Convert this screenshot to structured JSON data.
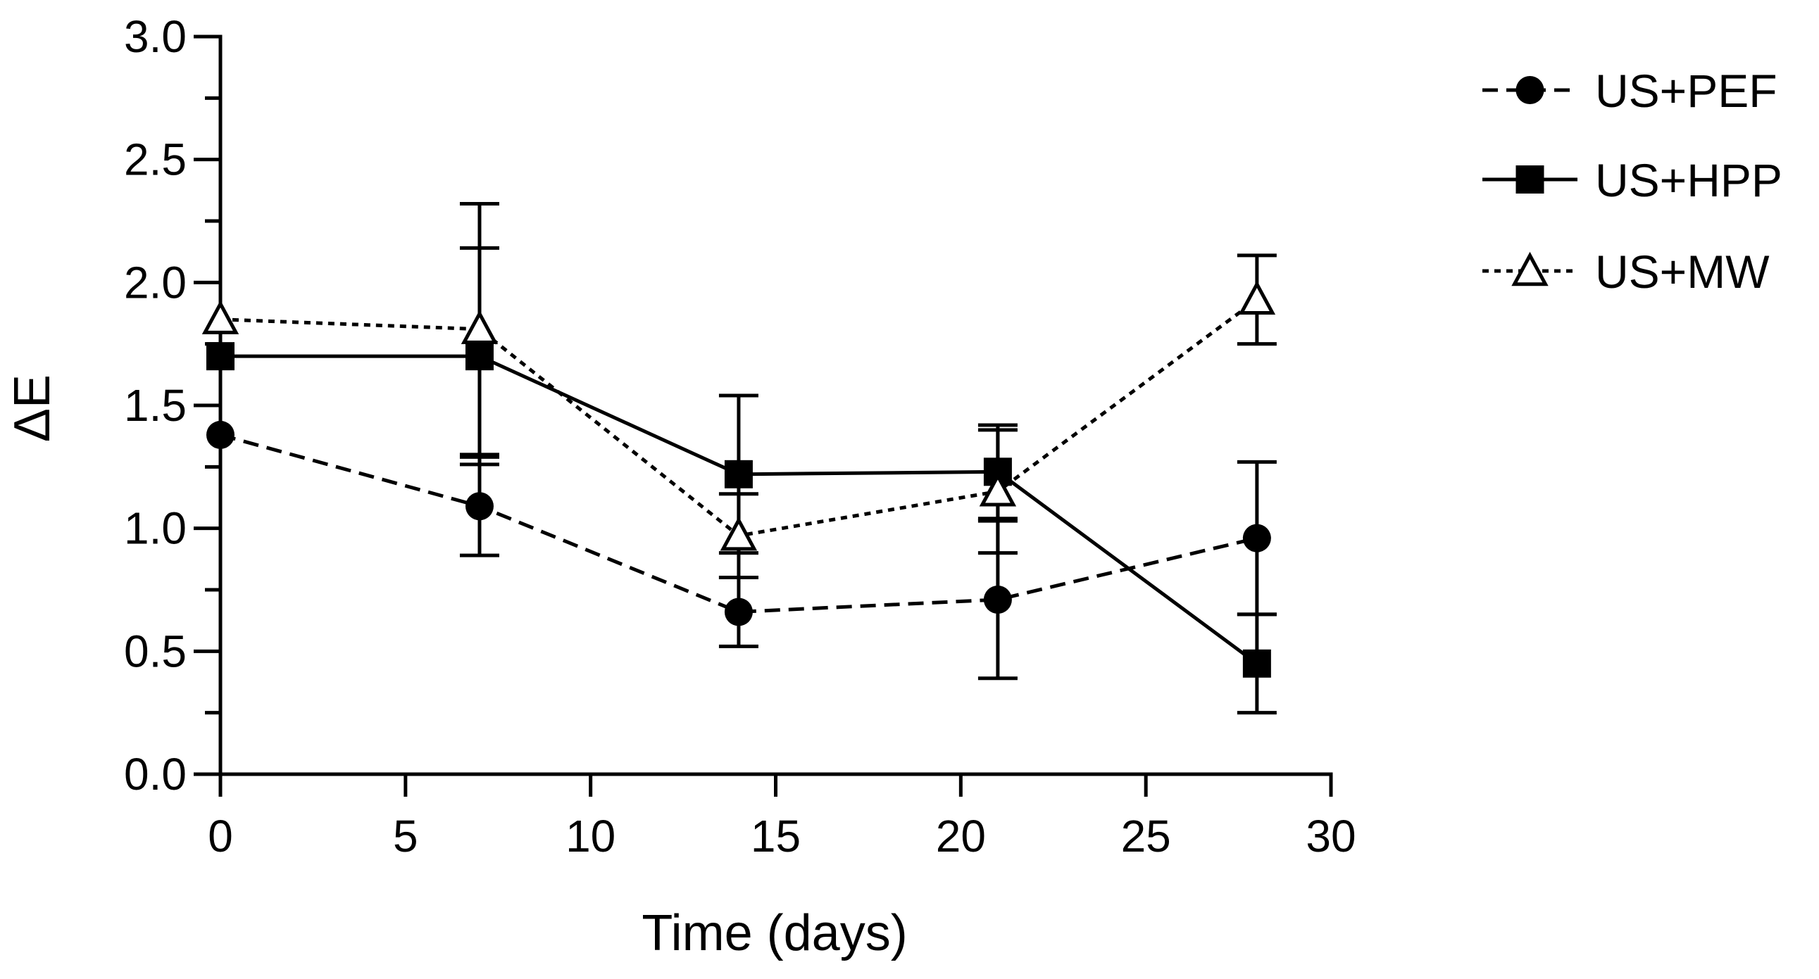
{
  "chart_data": {
    "type": "line",
    "title": "",
    "xlabel": "Time (days)",
    "ylabel": "ΔE",
    "xlim": [
      0,
      30
    ],
    "ylim": [
      0,
      3
    ],
    "xticks": [
      0,
      5,
      10,
      15,
      20,
      25,
      30
    ],
    "xtick_labels": [
      "0",
      "5",
      "10",
      "15",
      "20",
      "25",
      "30"
    ],
    "yticks": [
      0,
      0.5,
      1,
      1.5,
      2,
      2.5,
      3
    ],
    "ytick_labels": [
      "0.0",
      "0.5",
      "1.0",
      "1.5",
      "2.0",
      "2.5",
      "3.0"
    ],
    "grid": false,
    "legend_position": "right",
    "series": [
      {
        "name": "US+PEF",
        "marker": "filled-circle",
        "line_style": "dashed",
        "x": [
          0,
          7,
          14,
          21,
          28
        ],
        "values": [
          1.38,
          1.09,
          0.66,
          0.71,
          0.96
        ],
        "error_lower": [
          null,
          0.2,
          0.14,
          0.32,
          0.31
        ],
        "error_upper": [
          null,
          0.2,
          0.14,
          0.32,
          0.31
        ]
      },
      {
        "name": "US+HPP",
        "marker": "filled-square",
        "line_style": "solid",
        "x": [
          0,
          7,
          14,
          21,
          28
        ],
        "values": [
          1.7,
          1.7,
          1.22,
          1.23,
          0.45
        ],
        "error_lower": [
          null,
          0.44,
          0.32,
          0.19,
          0.2
        ],
        "error_upper": [
          null,
          0.44,
          0.32,
          0.19,
          0.2
        ]
      },
      {
        "name": "US+MW",
        "marker": "open-triangle",
        "line_style": "dotted",
        "x": [
          0,
          7,
          14,
          21,
          28
        ],
        "values": [
          1.85,
          1.81,
          0.97,
          1.15,
          1.93
        ],
        "error_lower": [
          null,
          0.51,
          0.17,
          0.25,
          0.18
        ],
        "error_upper": [
          null,
          0.51,
          0.17,
          0.25,
          0.18
        ]
      }
    ]
  }
}
